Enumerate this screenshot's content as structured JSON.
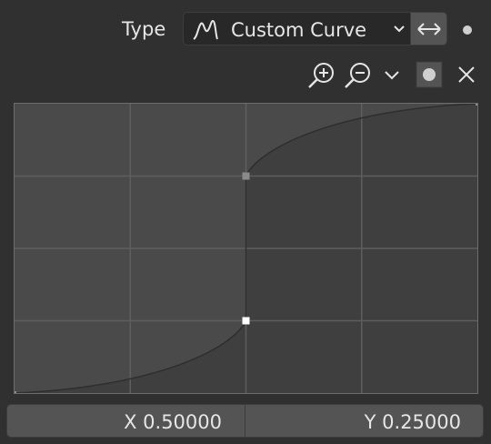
{
  "header": {
    "type_label": "Type",
    "dropdown_value": "Custom Curve",
    "dropdown_icon": "curve-icon",
    "extend_icon": "extend-horizontal-icon"
  },
  "toolbar": {
    "icons": [
      "zoom-in-icon",
      "zoom-out-icon",
      "chevron-down-icon",
      "clip-icon",
      "delete-icon"
    ]
  },
  "curve": {
    "grid_divisions": 4,
    "points": [
      {
        "x": 0.0,
        "y": 0.0
      },
      {
        "x": 0.5,
        "y": 0.25,
        "selected": true
      },
      {
        "x": 0.5,
        "y": 0.75
      },
      {
        "x": 1.0,
        "y": 1.0
      }
    ]
  },
  "coords": {
    "x_text": "X 0.50000",
    "y_text": "Y 0.25000"
  }
}
